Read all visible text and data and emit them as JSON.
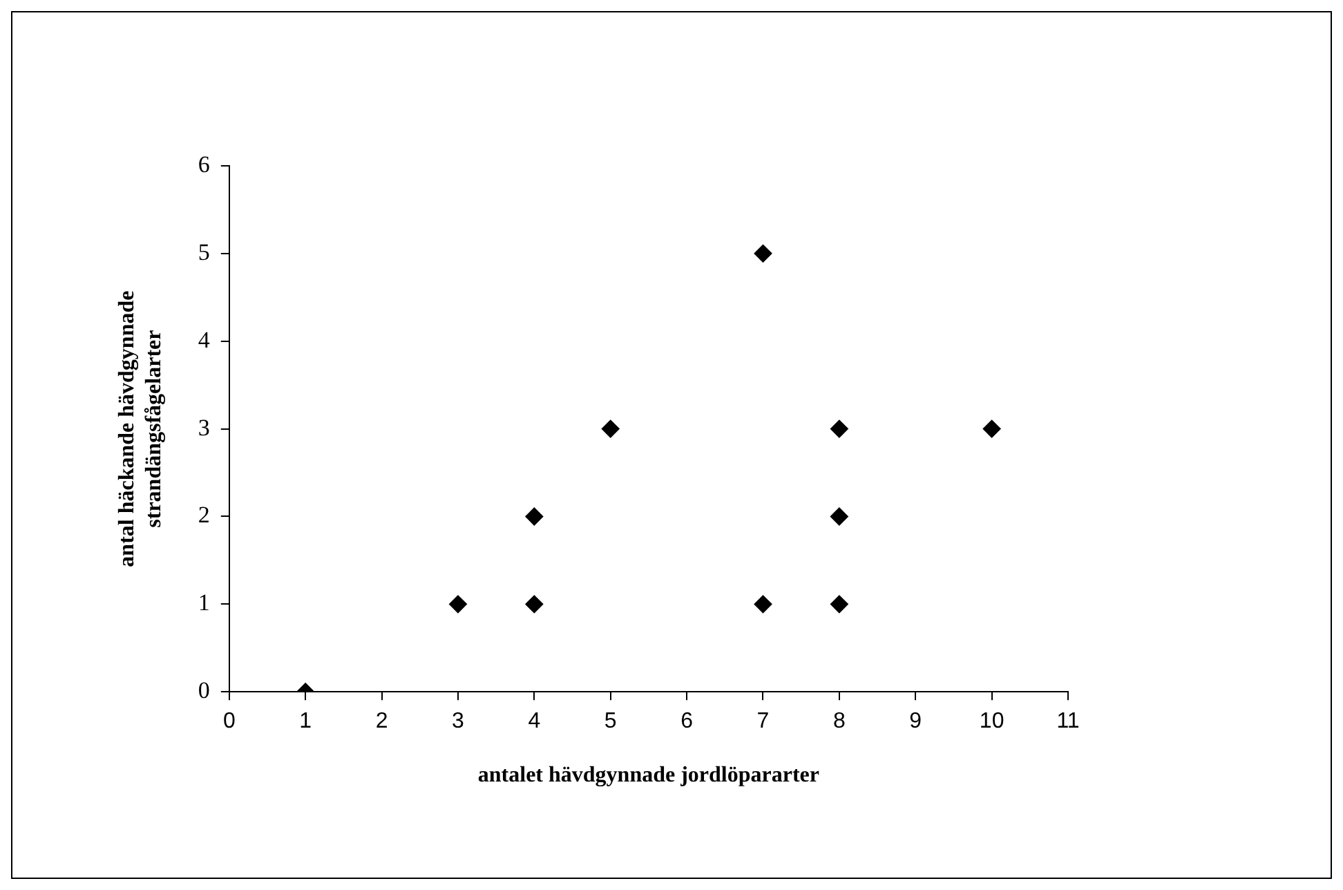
{
  "chart_data": {
    "type": "scatter",
    "xlabel": "antalet hävdgynnade jordlöpararter",
    "ylabel": "antal häckande hävdgynnade\nstrandängsfågelarter",
    "x": [
      1,
      3,
      4,
      4,
      5,
      7,
      7,
      8,
      8,
      8,
      10
    ],
    "values": [
      0,
      1,
      1,
      2,
      3,
      5,
      1,
      3,
      2,
      1,
      3
    ],
    "color": "#000000",
    "marker": "diamond",
    "xlim": [
      0,
      11
    ],
    "xticks": [
      0,
      1,
      2,
      3,
      4,
      5,
      6,
      7,
      8,
      9,
      10,
      11
    ],
    "ylim": [
      0,
      6
    ],
    "yticks": [
      0,
      1,
      2,
      3,
      4,
      5,
      6
    ]
  }
}
